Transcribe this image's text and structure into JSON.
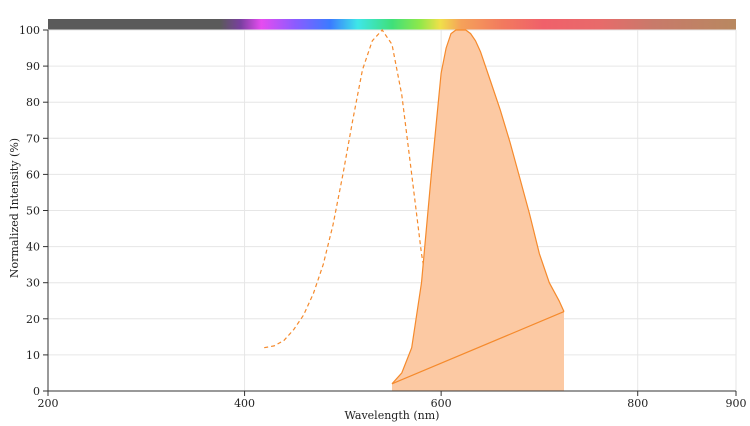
{
  "chart_data": {
    "type": "area",
    "xlabel": "Wavelength (nm)",
    "ylabel": "Normalized Intensity (%)",
    "xlim": [
      200,
      900
    ],
    "ylim": [
      0,
      100
    ],
    "x_ticks": [
      200,
      400,
      600,
      800,
      900
    ],
    "y_ticks": [
      0,
      10,
      20,
      30,
      40,
      50,
      60,
      70,
      80,
      90,
      100
    ],
    "grid": true,
    "spectrum_bar": true,
    "colors": {
      "series": "#f58a2c",
      "fill": "#fcc9a3"
    },
    "series": [
      {
        "style": "dashed",
        "x": [
          420,
          430,
          440,
          450,
          460,
          470,
          480,
          490,
          500,
          510,
          520,
          530,
          540,
          550,
          560,
          570,
          580,
          590,
          600,
          610,
          620,
          630,
          640,
          650
        ],
        "y": [
          12,
          12.5,
          14,
          17,
          21,
          27,
          35,
          46,
          60,
          75,
          89,
          97,
          100,
          96,
          82,
          60,
          38,
          22,
          14,
          10,
          8.5,
          8,
          8,
          8
        ]
      },
      {
        "style": "filled",
        "x": [
          550,
          560,
          570,
          580,
          590,
          600,
          605,
          610,
          615,
          620,
          625,
          630,
          635,
          640,
          650,
          660,
          670,
          680,
          690,
          700,
          710,
          720,
          725
        ],
        "y": [
          2,
          5,
          12,
          30,
          60,
          88,
          95,
          99,
          100,
          100,
          100,
          99,
          97,
          94,
          86,
          78,
          69,
          59,
          49,
          38,
          30,
          25,
          22
        ]
      },
      {
        "style": "solid",
        "x": [
          550,
          725
        ],
        "y": [
          2,
          22
        ]
      }
    ]
  }
}
